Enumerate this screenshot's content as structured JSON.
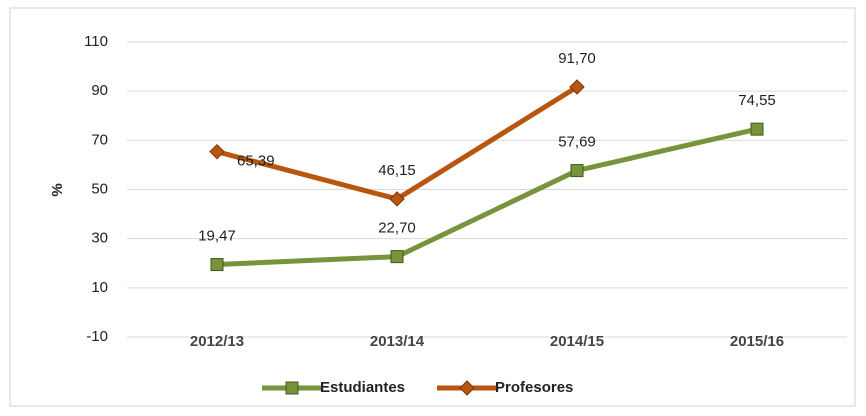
{
  "chart_data": {
    "type": "line",
    "categories": [
      "2012/13",
      "2013/14",
      "2014/15",
      "2015/16"
    ],
    "y_label": "%",
    "series": [
      {
        "name": "Estudiantes",
        "color": "#77933c",
        "marker": "square",
        "values": [
          19.47,
          22.7,
          57.69,
          74.55
        ],
        "value_labels": [
          "19,47",
          "22,70",
          "57,69",
          "74,55"
        ]
      },
      {
        "name": "Profesores",
        "color": "#b8560f",
        "marker": "diamond",
        "values": [
          65.39,
          46.15,
          91.7,
          null
        ],
        "value_labels": [
          "65,39",
          "46,15",
          "91,70",
          null
        ]
      }
    ],
    "ylim": [
      -10,
      110
    ],
    "yticks": [
      -10,
      10,
      30,
      50,
      70,
      90,
      110
    ],
    "grid": true,
    "legend": "bottom"
  }
}
